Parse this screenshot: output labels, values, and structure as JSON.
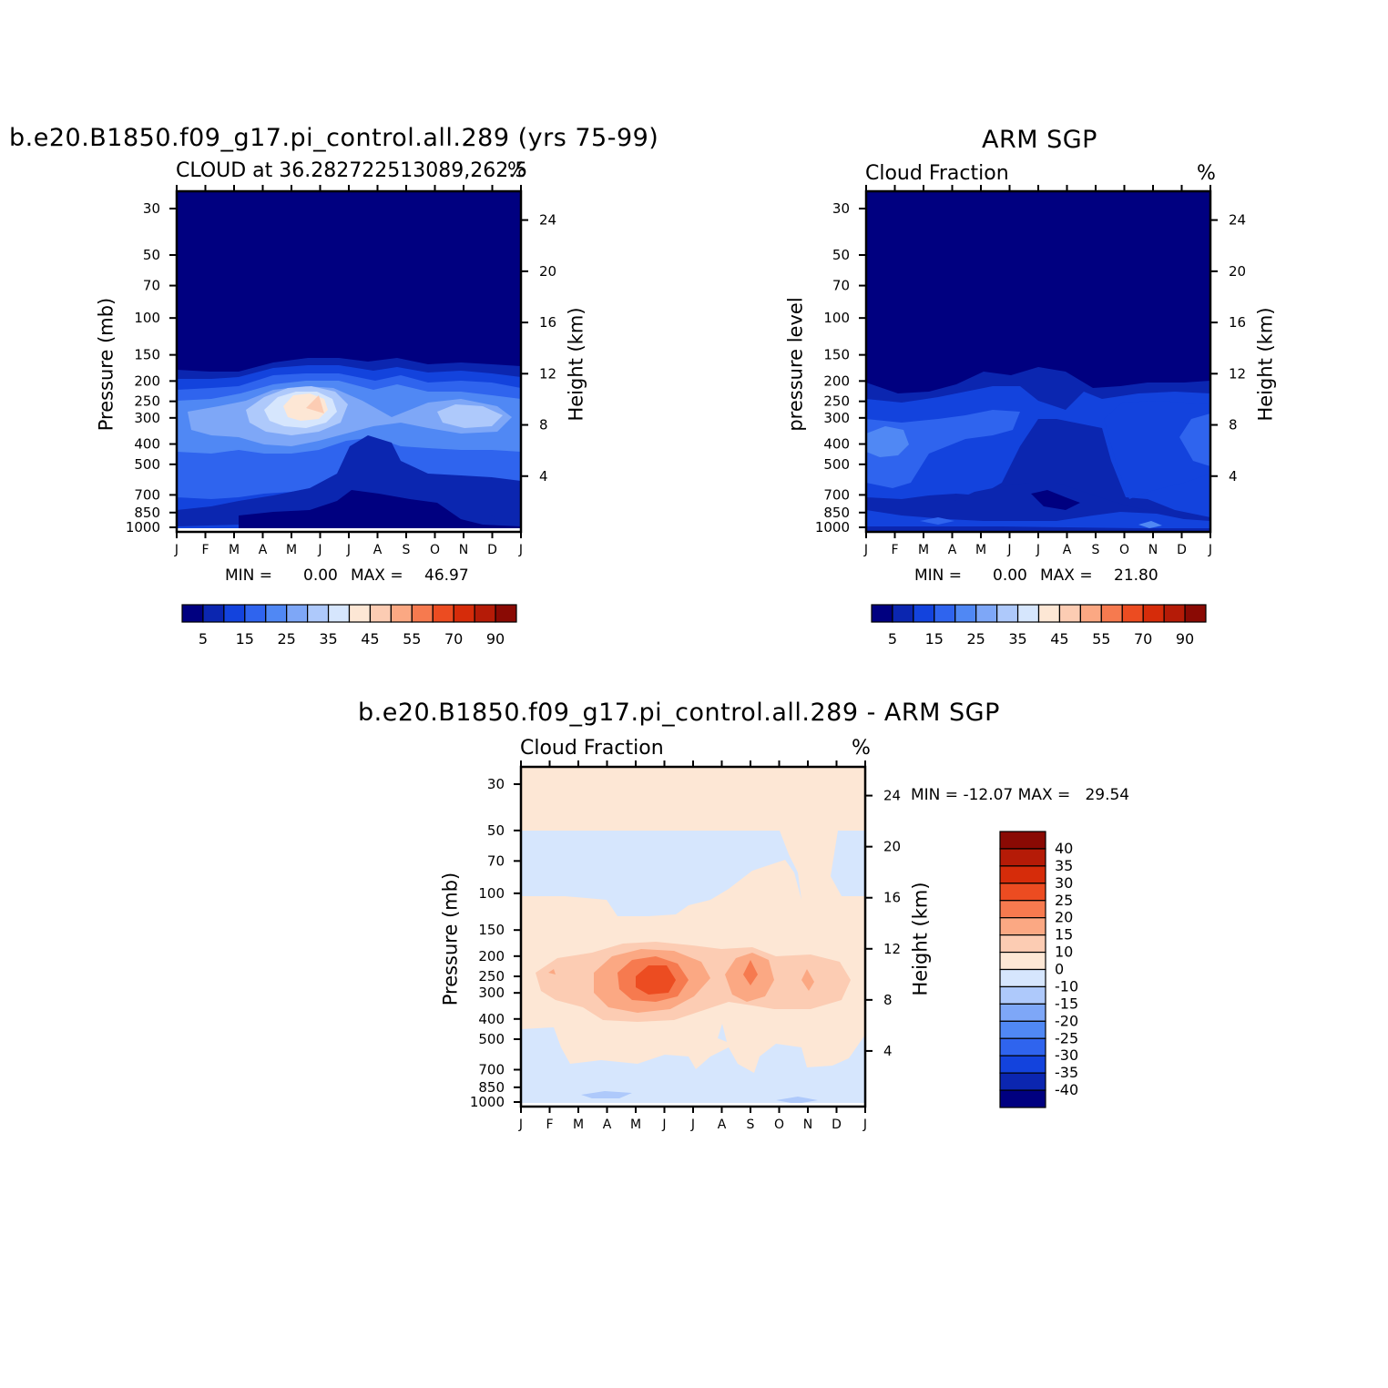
{
  "palette": [
    "#000080",
    "#0b26b0",
    "#1343dd",
    "#2f64ee",
    "#5088f4",
    "#7ea7f7",
    "#aec9fb",
    "#d6e6fd",
    "#fde7d5",
    "#fcccb3",
    "#fba883",
    "#f67a4f",
    "#ec4c21",
    "#d62c0a",
    "#b51b07",
    "#8a0a04"
  ],
  "diff_palette": [
    "#000080",
    "#0b26b0",
    "#1343dd",
    "#2f64ee",
    "#5088f4",
    "#7ea7f7",
    "#aec9fb",
    "#d6e6fd",
    "#fde7d5",
    "#fcccb3",
    "#fba883",
    "#f67a4f",
    "#ec4c21",
    "#d62c0a",
    "#b51b07",
    "#8a0a04"
  ],
  "panel1": {
    "title": "b.e20.B1850.f09_g17.pi_control.all.289 (yrs 75-99)",
    "subtitle_left": "CLOUD at 36.282722513089,262.5",
    "subtitle_right": "%",
    "ylabel_left": "Pressure (mb)",
    "ylabel_right": "Height (km)",
    "min_label": "MIN =",
    "min_value": "0.00",
    "max_label": "MAX =",
    "max_value": "46.97"
  },
  "panel2": {
    "title": "ARM SGP",
    "subtitle_left": "Cloud Fraction",
    "subtitle_right": "%",
    "ylabel_left": "pressure level",
    "ylabel_right": "Height (km)",
    "min_label": "MIN =",
    "min_value": "0.00",
    "max_label": "MAX =",
    "max_value": "21.80"
  },
  "panel3": {
    "title": "b.e20.B1850.f09_g17.pi_control.all.289 - ARM SGP",
    "subtitle_left": "Cloud Fraction",
    "subtitle_right": "%",
    "ylabel_left": "Pressure (mb)",
    "ylabel_right": "Height (km)",
    "stats": "MIN = -12.07 MAX =   29.54"
  },
  "chart_data": [
    {
      "type": "heatmap",
      "title": "b.e20.B1850.f09_g17.pi_control.all.289 (yrs 75-99)",
      "subtitle": "CLOUD at 36.282722513089,262.5",
      "units": "%",
      "x_ticks": [
        "J",
        "F",
        "M",
        "A",
        "M",
        "J",
        "J",
        "A",
        "S",
        "O",
        "N",
        "D",
        "J"
      ],
      "y_ticks": [
        "30",
        "50",
        "70",
        "100",
        "150",
        "200",
        "250",
        "300",
        "400",
        "500",
        "700",
        "850",
        "1000"
      ],
      "y_right_ticks": [
        "24",
        "20",
        "16",
        "12",
        "8",
        "4"
      ],
      "ylabel": "Pressure (mb)",
      "ylabel_right": "Height (km)",
      "colorbar_labels": [
        "5",
        "15",
        "25",
        "35",
        "45",
        "55",
        "70",
        "90"
      ],
      "min": 0.0,
      "max": 46.97
    },
    {
      "type": "heatmap",
      "title": "ARM SGP",
      "subtitle": "Cloud Fraction",
      "units": "%",
      "x_ticks": [
        "J",
        "F",
        "M",
        "A",
        "M",
        "J",
        "J",
        "A",
        "S",
        "O",
        "N",
        "D",
        "J"
      ],
      "y_ticks": [
        "30",
        "50",
        "70",
        "100",
        "150",
        "200",
        "250",
        "300",
        "400",
        "500",
        "700",
        "850",
        "1000"
      ],
      "y_right_ticks": [
        "24",
        "20",
        "16",
        "12",
        "8",
        "4"
      ],
      "ylabel": "pressure level",
      "ylabel_right": "Height (km)",
      "colorbar_labels": [
        "5",
        "15",
        "25",
        "35",
        "45",
        "55",
        "70",
        "90"
      ],
      "min": 0.0,
      "max": 21.8
    },
    {
      "type": "heatmap",
      "title": "b.e20.B1850.f09_g17.pi_control.all.289 - ARM SGP",
      "subtitle": "Cloud Fraction",
      "units": "%",
      "x_ticks": [
        "J",
        "F",
        "M",
        "A",
        "M",
        "J",
        "J",
        "A",
        "S",
        "O",
        "N",
        "D",
        "J"
      ],
      "y_ticks": [
        "30",
        "50",
        "70",
        "100",
        "150",
        "200",
        "250",
        "300",
        "400",
        "500",
        "700",
        "850",
        "1000"
      ],
      "y_right_ticks": [
        "24",
        "20",
        "16",
        "12",
        "8",
        "4"
      ],
      "ylabel": "Pressure (mb)",
      "ylabel_right": "Height (km)",
      "colorbar_labels": [
        "40",
        "35",
        "30",
        "25",
        "20",
        "15",
        "10",
        "0",
        "-10",
        "-15",
        "-20",
        "-25",
        "-30",
        "-35",
        "-40"
      ],
      "min": -12.07,
      "max": 29.54
    }
  ]
}
